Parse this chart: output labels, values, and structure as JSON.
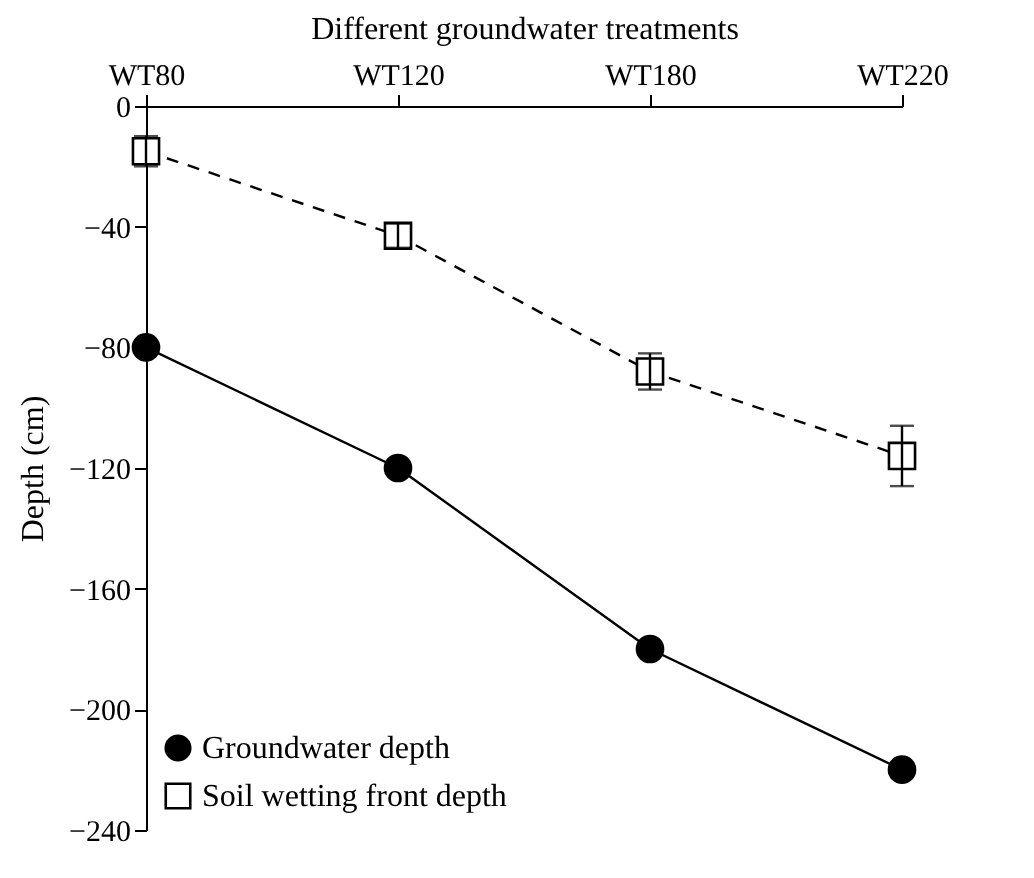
{
  "chart_data": {
    "type": "line",
    "xlabel": "Different groundwater treatments",
    "ylabel": "Depth (cm)",
    "categories": [
      "WT80",
      "WT120",
      "WT180",
      "WT220"
    ],
    "series": [
      {
        "name": "Groundwater depth",
        "color": "#000000",
        "values": [
          -80,
          -120,
          -180,
          -220
        ],
        "marker": "circle",
        "line_style": "solid"
      },
      {
        "name": "Soil wetting front depth",
        "color": "#000000",
        "values": [
          -15,
          -43,
          -88,
          -116
        ],
        "errors": [
          5,
          4,
          6,
          10
        ],
        "marker": "square",
        "line_style": "dashed"
      }
    ],
    "ylim": [
      -240,
      0
    ],
    "yticks": [
      0,
      -40,
      -80,
      -120,
      -160,
      -200,
      -240
    ],
    "grid": false,
    "legend": "bottom left"
  }
}
